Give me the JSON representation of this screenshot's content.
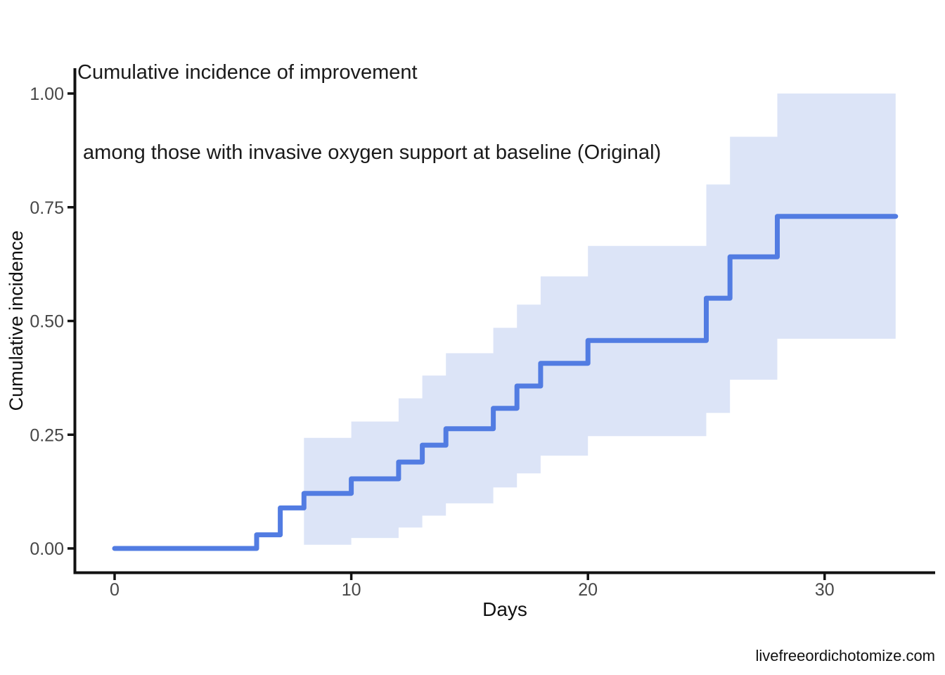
{
  "title_line1": "Cumulative incidence of improvement",
  "title_line2": " among those with invasive oxygen support at baseline (Original)",
  "caption": "livefreeordichotomize.com",
  "chart_data": {
    "type": "line",
    "subtype": "step-cumulative-incidence-with-ci-ribbon",
    "title": "Cumulative incidence of improvement\n among those with invasive oxygen support at baseline (Original)",
    "xlabel": "Days",
    "ylabel": "Cumulative incidence",
    "xlim": [
      -1.65,
      34.65
    ],
    "ylim": [
      0,
      1
    ],
    "grid": false,
    "legend": "none",
    "x_ticks": [
      {
        "value": 0,
        "label": "0"
      },
      {
        "value": 10,
        "label": "10"
      },
      {
        "value": 20,
        "label": "20"
      },
      {
        "value": 30,
        "label": "30"
      }
    ],
    "y_ticks": [
      {
        "value": 0,
        "label": "0.00"
      },
      {
        "value": 0.25,
        "label": "0.25"
      },
      {
        "value": 0.5,
        "label": "0.50"
      },
      {
        "value": 0.75,
        "label": "0.75"
      },
      {
        "value": 1,
        "label": "1.00"
      }
    ],
    "series": [
      {
        "name": "cumulative-incidence-estimate",
        "style": "step",
        "color": "#527ce2",
        "end_x": 33,
        "points": [
          {
            "x": 0,
            "y": 0
          },
          {
            "x": 6,
            "y": 0.03
          },
          {
            "x": 7,
            "y": 0.089
          },
          {
            "x": 8,
            "y": 0.121
          },
          {
            "x": 10,
            "y": 0.153
          },
          {
            "x": 12,
            "y": 0.19
          },
          {
            "x": 13,
            "y": 0.227
          },
          {
            "x": 14,
            "y": 0.263
          },
          {
            "x": 16,
            "y": 0.308
          },
          {
            "x": 17,
            "y": 0.357
          },
          {
            "x": 18,
            "y": 0.407
          },
          {
            "x": 20,
            "y": 0.457
          },
          {
            "x": 25,
            "y": 0.55
          },
          {
            "x": 26,
            "y": 0.641
          },
          {
            "x": 28,
            "y": 0.73
          }
        ]
      }
    ],
    "confidence_band": {
      "name": "95%-ci-ribbon",
      "color": "#dce4f7",
      "end_x": 33,
      "steps": [
        {
          "x": 8,
          "lower": 0.008,
          "upper": 0.243
        },
        {
          "x": 10,
          "lower": 0.023,
          "upper": 0.279
        },
        {
          "x": 12,
          "lower": 0.046,
          "upper": 0.33
        },
        {
          "x": 13,
          "lower": 0.072,
          "upper": 0.38
        },
        {
          "x": 14,
          "lower": 0.099,
          "upper": 0.429
        },
        {
          "x": 16,
          "lower": 0.134,
          "upper": 0.485
        },
        {
          "x": 17,
          "lower": 0.165,
          "upper": 0.536
        },
        {
          "x": 18,
          "lower": 0.204,
          "upper": 0.598
        },
        {
          "x": 20,
          "lower": 0.247,
          "upper": 0.665
        },
        {
          "x": 25,
          "lower": 0.298,
          "upper": 0.8
        },
        {
          "x": 26,
          "lower": 0.371,
          "upper": 0.905
        },
        {
          "x": 28,
          "lower": 0.461,
          "upper": 1.0
        }
      ]
    },
    "colors": {
      "line": "#527ce2",
      "band": "#dce4f7",
      "axis": "#111111",
      "tick_label": "#474747"
    }
  }
}
